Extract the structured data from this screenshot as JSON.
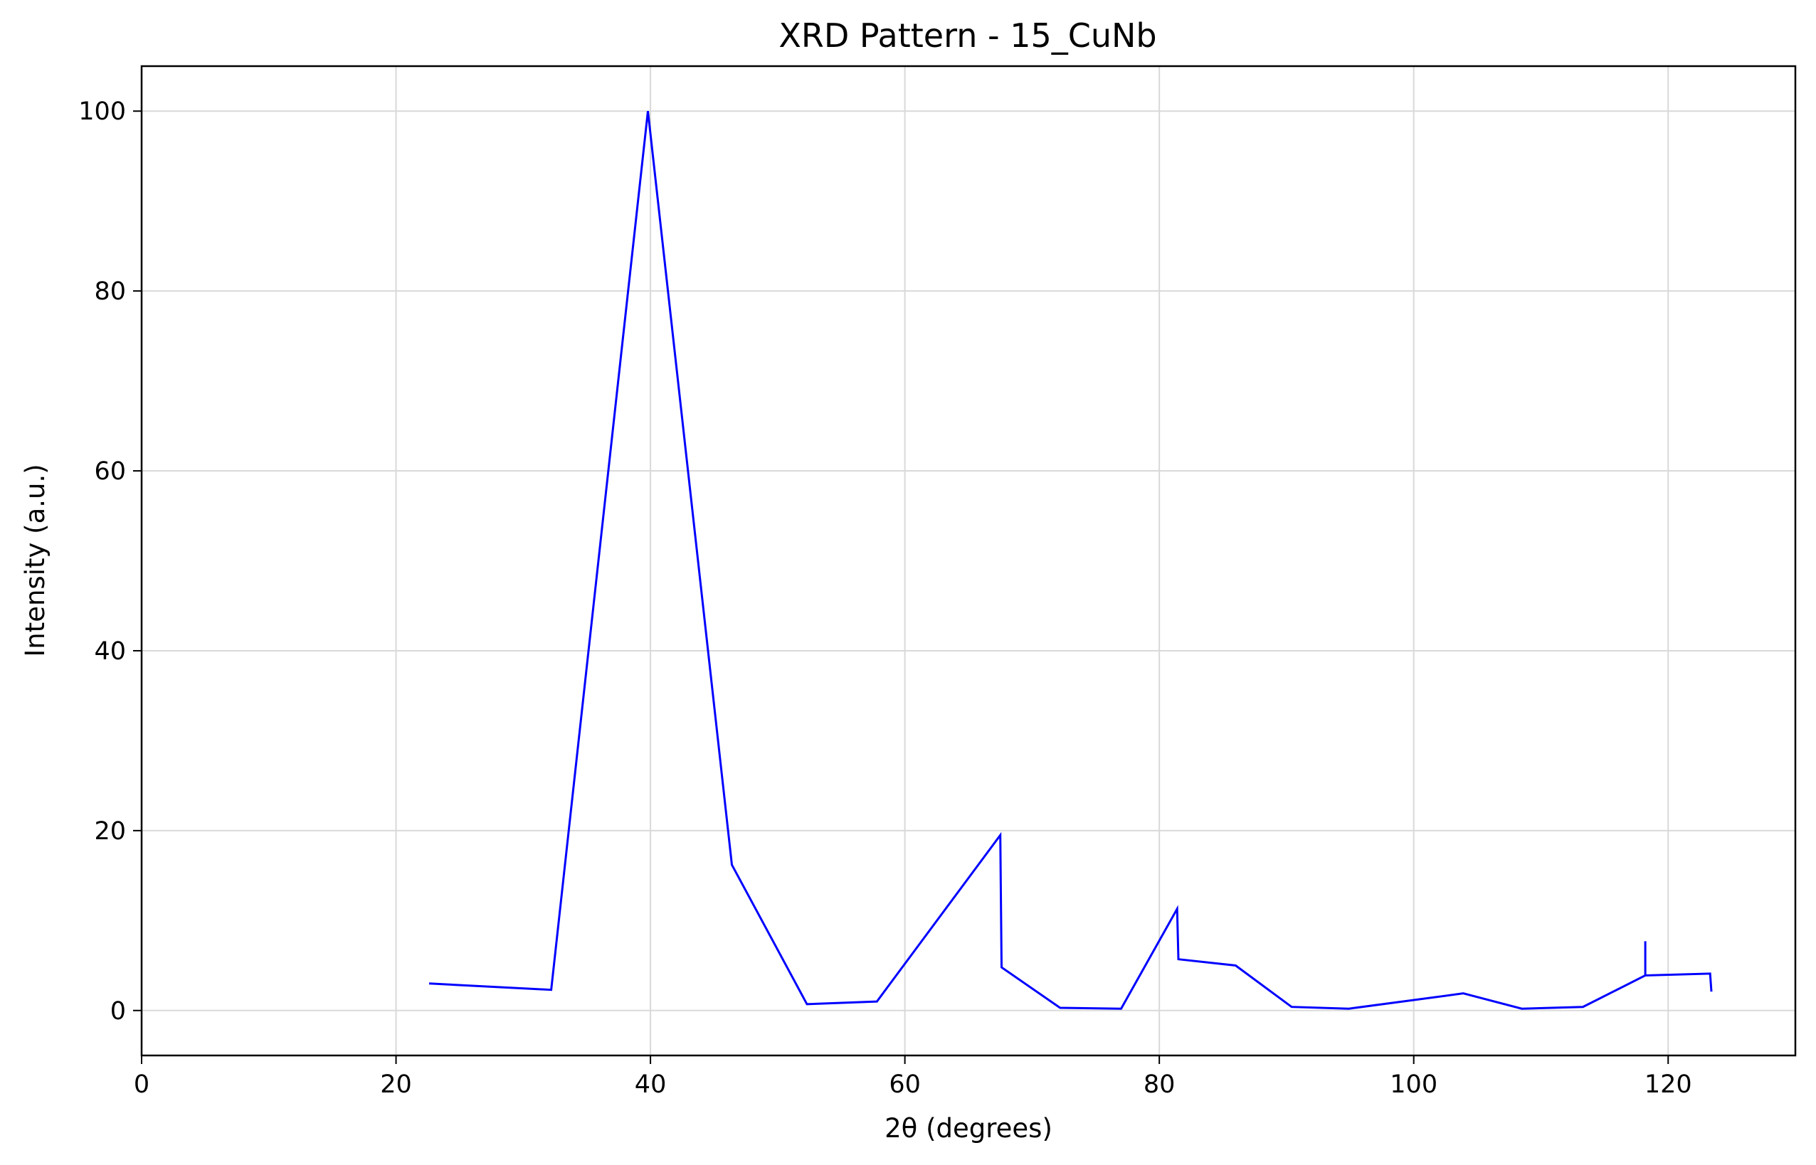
{
  "chart_data": {
    "type": "line",
    "title": "XRD Pattern - 15_CuNb",
    "xlabel": "2θ (degrees)",
    "ylabel": "Intensity (a.u.)",
    "xlim": [
      0,
      130
    ],
    "ylim": [
      -5,
      105
    ],
    "x_ticks": [
      0,
      20,
      40,
      60,
      80,
      100,
      120
    ],
    "y_ticks": [
      0,
      20,
      40,
      60,
      80,
      100
    ],
    "grid": true,
    "colors": {
      "line": "#0000ff",
      "grid": "#d9d9d9",
      "axes": "#000000"
    },
    "series": [
      {
        "x": [
          22.6,
          32.2,
          39.8,
          46.4,
          52.3,
          57.8,
          67.5,
          67.6,
          72.2,
          77.0,
          81.4,
          81.5,
          86.0,
          90.4,
          94.9,
          103.9,
          108.5,
          113.3,
          118.2,
          118.2,
          118.2,
          123.3,
          123.4
        ],
        "y": [
          3.0,
          2.3,
          100.0,
          16.2,
          0.7,
          1.0,
          19.5,
          4.8,
          0.3,
          0.2,
          11.3,
          5.7,
          5.0,
          0.4,
          0.2,
          1.9,
          0.2,
          0.4,
          3.9,
          7.7,
          3.9,
          4.1,
          2.1
        ]
      }
    ]
  }
}
